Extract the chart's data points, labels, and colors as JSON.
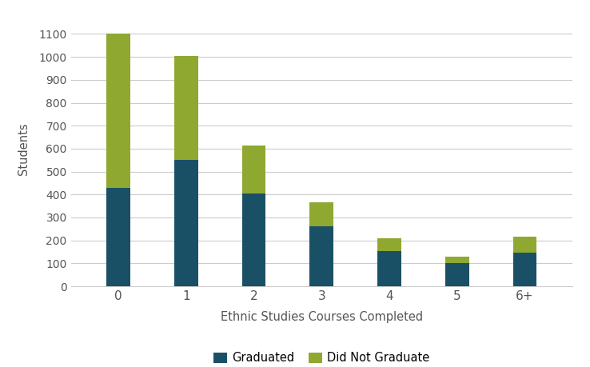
{
  "categories": [
    "0",
    "1",
    "2",
    "3",
    "4",
    "5",
    "6+"
  ],
  "graduated": [
    430,
    550,
    405,
    260,
    155,
    100,
    145
  ],
  "did_not_graduate": [
    670,
    455,
    210,
    105,
    55,
    30,
    70
  ],
  "graduated_color": "#1a5066",
  "did_not_graduate_color": "#8fa830",
  "xlabel": "Ethnic Studies Courses Completed",
  "ylabel": "Students",
  "ylim": [
    0,
    1200
  ],
  "yticks": [
    0,
    100,
    200,
    300,
    400,
    500,
    600,
    700,
    800,
    900,
    1000,
    1100
  ],
  "legend_graduated": "Graduated",
  "legend_did_not_graduate": "Did Not Graduate",
  "background_color": "#ffffff",
  "grid_color": "#cccccc",
  "bar_width": 0.35
}
